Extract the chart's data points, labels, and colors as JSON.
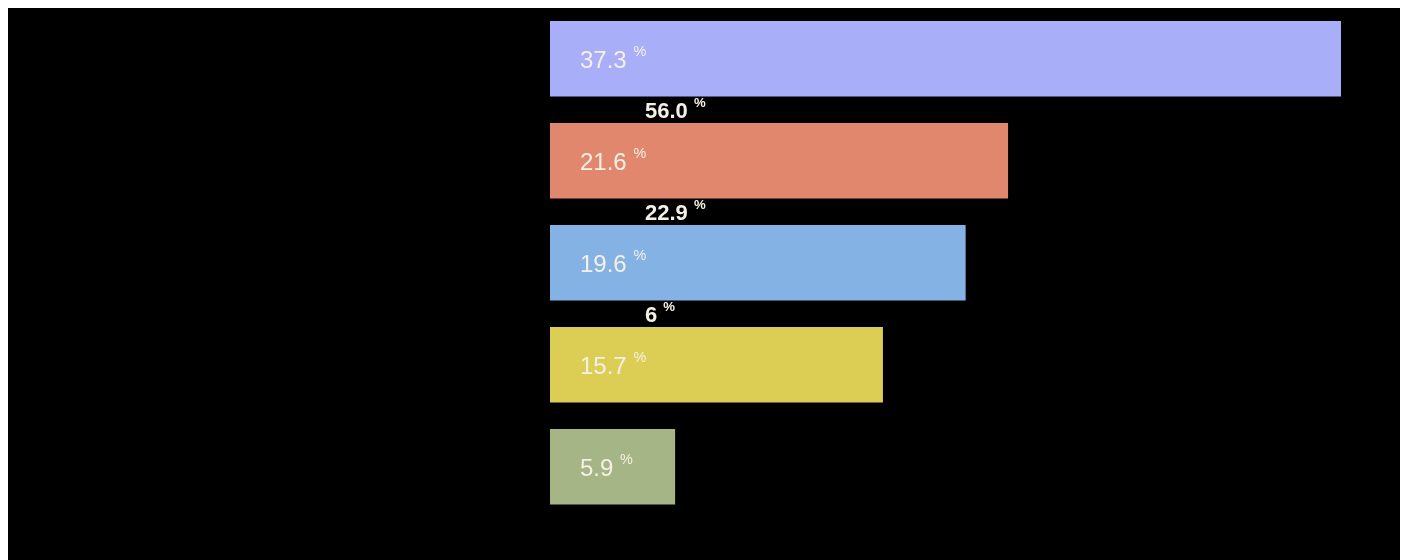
{
  "chart_data": {
    "type": "bar",
    "orientation": "horizontal",
    "categories": [
      null,
      null,
      null,
      null,
      null
    ],
    "values": [
      37.3,
      21.6,
      19.6,
      15.7,
      5.9
    ],
    "colors": [
      "#a8aff8",
      "#e0876d",
      "#84b2e4",
      "#dccd55",
      "#a5b585"
    ],
    "value_labels": [
      "37.3 $^{%}$",
      "21.6 $^{%}$",
      "19.6 $^{%}$",
      "15.7 $^{%}$",
      "5.9 $^{%}$"
    ],
    "annotations": [
      "56.0 $^{%}$",
      "22.9 $^{%}$",
      "6 $^{%}$"
    ]
  }
}
